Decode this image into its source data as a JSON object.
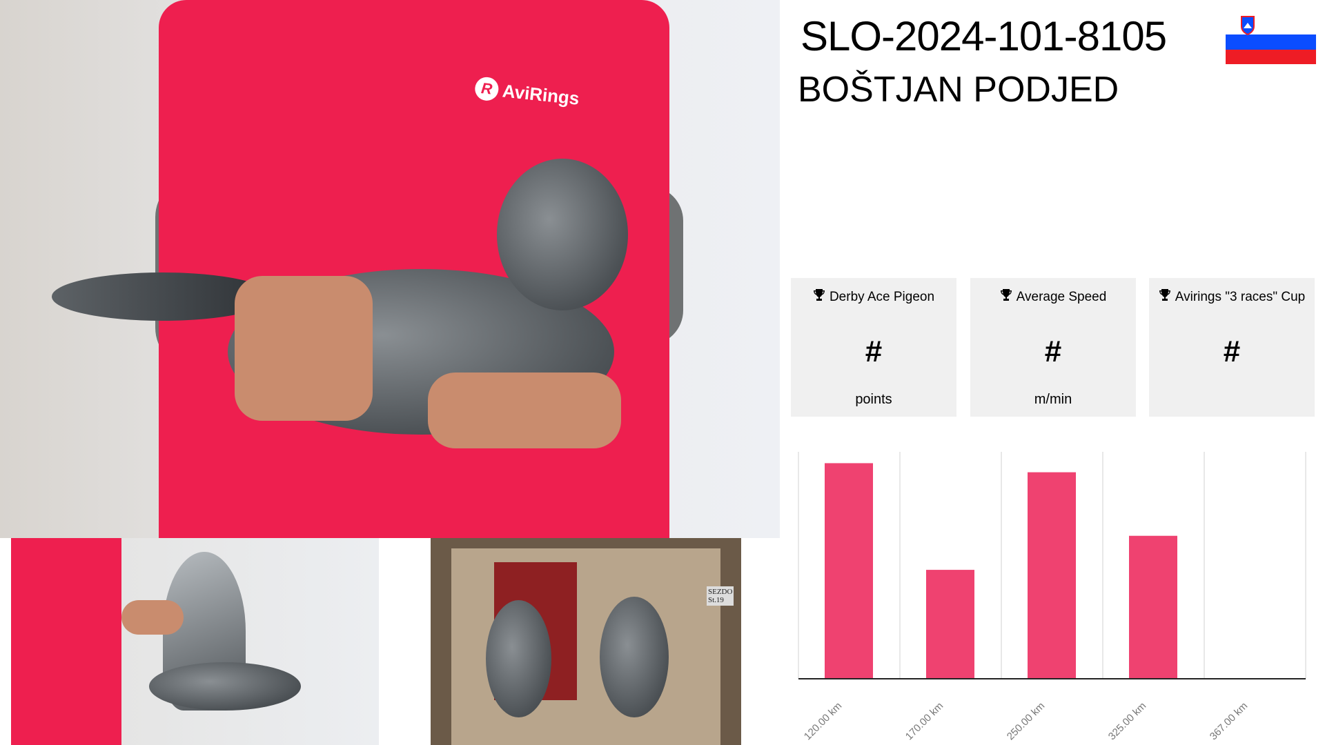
{
  "pigeon": {
    "ring": "SLO-2024-101-8105",
    "owner": "BOŠTJAN PODJED"
  },
  "flag": {
    "country": "Slovenia",
    "colors": [
      "#ffffff",
      "#0b4dff",
      "#ee1c25"
    ]
  },
  "photo_logo": "AviRings",
  "photo_labels": [
    "SEZDO",
    "St.19"
  ],
  "cards": [
    {
      "title": "Derby Ace Pigeon",
      "value": "#",
      "unit": "points",
      "icon": "trophy-icon"
    },
    {
      "title": "Average Speed",
      "value": "#",
      "unit": "m/min",
      "icon": "trophy-icon"
    },
    {
      "title": "Avirings \"3 races\" Cup",
      "value": "#",
      "unit": "",
      "icon": "trophy-icon"
    }
  ],
  "chart_data": {
    "type": "bar",
    "categories": [
      "120.00 km",
      "170.00 km",
      "250.00 km",
      "325.00 km",
      "367.00 km"
    ],
    "values": [
      0.95,
      0.48,
      0.91,
      0.63,
      0
    ],
    "ylim": [
      0,
      1
    ],
    "grid": "vertical",
    "color": "#ef4270",
    "xlabel": "",
    "ylabel": "",
    "title": ""
  }
}
